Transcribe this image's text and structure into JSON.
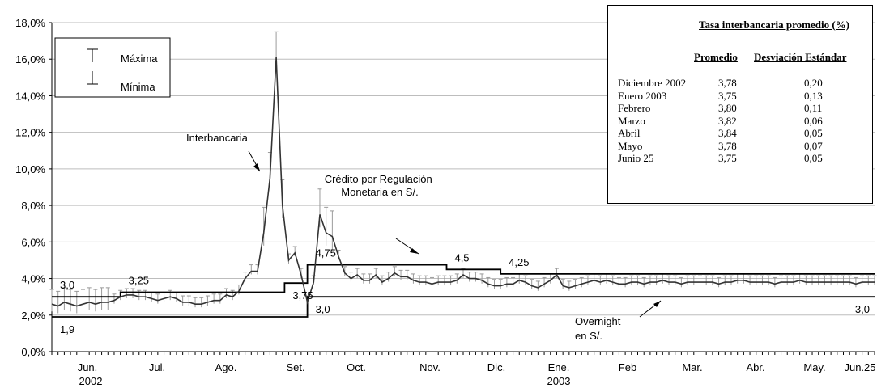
{
  "chart_data": {
    "type": "line",
    "ylim": [
      0,
      18
    ],
    "y_ticks": [
      "0,0%",
      "2,0%",
      "4,0%",
      "6,0%",
      "8,0%",
      "10,0%",
      "12,0%",
      "14,0%",
      "16,0%",
      "18,0%"
    ],
    "x_labels": [
      "Jun.",
      "Jul.",
      "Ago.",
      "Set.",
      "Oct.",
      "Nov.",
      "Dic.",
      "Ene.",
      "Feb",
      "Mar.",
      "Abr.",
      "May.",
      "Jun.25"
    ],
    "year_labels": [
      "2002",
      "2003"
    ],
    "grid": true,
    "legend": {
      "max_label": "Máxima",
      "min_label": "Mínima"
    },
    "annotations": {
      "interbank": "Interbancaria",
      "credit": "Crédito por Regulación Monetaria en S/.",
      "overnight": "Overnight en S/."
    },
    "series": [
      {
        "name": "Interbancaria",
        "x": [
          0,
          3,
          6,
          9,
          12,
          15,
          18,
          21,
          24,
          27,
          30,
          33,
          36,
          39,
          42,
          45,
          48,
          51,
          54,
          57,
          60,
          63,
          66,
          69,
          72,
          75,
          78,
          81,
          84,
          87,
          90,
          93,
          96,
          99,
          102,
          105,
          108,
          111,
          114,
          117,
          120,
          123,
          126,
          129,
          132,
          135,
          138,
          141,
          144,
          147,
          150,
          153,
          156,
          159,
          162,
          165,
          168,
          171,
          174,
          177,
          180,
          183,
          186,
          189,
          192,
          195,
          198,
          201,
          204,
          207,
          210,
          213,
          216,
          219,
          222,
          225,
          228,
          231,
          234,
          237,
          240,
          243,
          246,
          249,
          252,
          255,
          258,
          261,
          264,
          267,
          270,
          273,
          276,
          279,
          282,
          285,
          288,
          291,
          294,
          297,
          300,
          303,
          306,
          309,
          312,
          315,
          318,
          321,
          324,
          327,
          330,
          333,
          336,
          339,
          342,
          345,
          348,
          351,
          354,
          357,
          360,
          363,
          366,
          369,
          372,
          375,
          378,
          381,
          384,
          387,
          390,
          393,
          396
        ],
        "values": [
          2.6,
          2.5,
          2.7,
          2.6,
          2.5,
          2.6,
          2.7,
          2.6,
          2.7,
          2.7,
          2.8,
          3.0,
          3.1,
          3.1,
          3.0,
          3.0,
          2.9,
          2.8,
          2.9,
          3.0,
          2.9,
          2.7,
          2.7,
          2.6,
          2.6,
          2.7,
          2.8,
          2.8,
          3.1,
          3.0,
          3.3,
          4.0,
          4.4,
          4.4,
          6.5,
          9.5,
          16.1,
          8.0,
          5.0,
          5.4,
          4.2,
          2.7,
          3.8,
          7.5,
          6.5,
          6.3,
          5.2,
          4.3,
          4.0,
          4.2,
          3.9,
          3.9,
          4.2,
          3.8,
          4.0,
          4.3,
          4.1,
          4.1,
          3.9,
          3.8,
          3.8,
          3.7,
          3.8,
          3.8,
          3.8,
          3.9,
          4.2,
          4.0,
          4.0,
          3.9,
          3.7,
          3.6,
          3.6,
          3.7,
          3.7,
          3.9,
          3.8,
          3.6,
          3.5,
          3.7,
          3.9,
          4.2,
          3.6,
          3.5,
          3.6,
          3.7,
          3.8,
          3.9,
          3.8,
          3.9,
          3.8,
          3.7,
          3.7,
          3.8,
          3.8,
          3.7,
          3.8,
          3.8,
          3.9,
          3.8,
          3.8,
          3.7,
          3.8,
          3.8,
          3.8,
          3.8,
          3.8,
          3.7,
          3.8,
          3.8,
          3.9,
          3.9,
          3.8,
          3.8,
          3.8,
          3.8,
          3.7,
          3.8,
          3.8,
          3.8,
          3.9,
          3.8,
          3.8,
          3.8,
          3.8,
          3.8,
          3.8,
          3.8,
          3.8,
          3.7,
          3.8,
          3.8,
          3.8
        ]
      },
      {
        "name": "Crédito por Regulación Monetaria en S/.",
        "steps": [
          {
            "x0": 0,
            "x1": 33,
            "y": 3.0,
            "label": "3,0"
          },
          {
            "x0": 33,
            "x1": 112,
            "y": 3.25,
            "label": "3,25"
          },
          {
            "x0": 112,
            "x1": 123,
            "y": 3.75,
            "label": "3,75"
          },
          {
            "x0": 123,
            "x1": 190,
            "y": 4.75,
            "label": "4,75"
          },
          {
            "x0": 190,
            "x1": 216,
            "y": 4.5,
            "label": "4,5"
          },
          {
            "x0": 216,
            "x1": 396,
            "y": 4.25,
            "label": "4,25"
          }
        ]
      },
      {
        "name": "Overnight en S/.",
        "steps": [
          {
            "x0": 0,
            "x1": 123,
            "y": 1.9,
            "label": "1,9"
          },
          {
            "x0": 123,
            "x1": 396,
            "y": 3.0,
            "label": "3,0",
            "end_label": "3,0"
          }
        ]
      }
    ]
  },
  "stats_table": {
    "title": "Tasa interbancaria promedio (%)",
    "col_avg": "Promedio",
    "col_sd": "Desviación Estándar",
    "rows": [
      {
        "month": "Diciembre 2002",
        "avg": "3,78",
        "sd": "0,20"
      },
      {
        "month": "Enero 2003",
        "avg": "3,75",
        "sd": "0,13"
      },
      {
        "month": "Febrero",
        "avg": "3,80",
        "sd": "0,11"
      },
      {
        "month": "Marzo",
        "avg": "3,82",
        "sd": "0,06"
      },
      {
        "month": "Abril",
        "avg": "3,84",
        "sd": "0,05"
      },
      {
        "month": "Mayo",
        "avg": "3,78",
        "sd": "0,07"
      },
      {
        "month": "Junio 25",
        "avg": "3,75",
        "sd": "0,05"
      }
    ]
  }
}
